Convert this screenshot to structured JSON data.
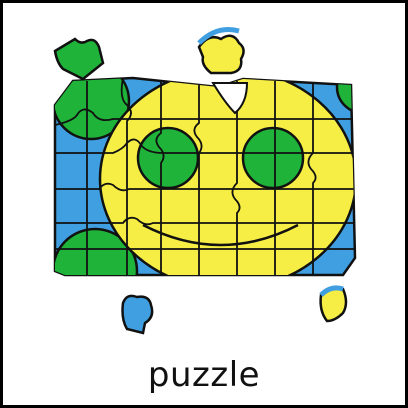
{
  "caption": {
    "word": "puzzle"
  },
  "illustration": {
    "icon": "puzzle-smiley-icon",
    "colors": {
      "outline": "#111111",
      "blue": "#3f9fe0",
      "yellow": "#f7ee45",
      "green": "#1fb33a",
      "background": "#ffffff"
    }
  }
}
